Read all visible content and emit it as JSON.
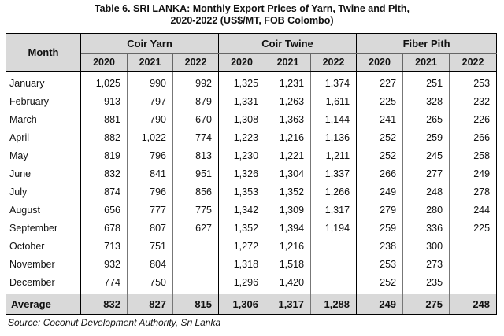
{
  "title_line1": "Table 6. SRI LANKA: Monthly Export Prices of Yarn, Twine and Pith,",
  "title_line2": "2020-2022 (US$/MT, FOB Colombo)",
  "month_header": "Month",
  "groups": [
    "Coir Yarn",
    "Coir Twine",
    "Fiber Pith"
  ],
  "years": [
    "2020",
    "2021",
    "2022"
  ],
  "rows": [
    {
      "month": "January",
      "values": [
        "1,025",
        "990",
        "992",
        "1,325",
        "1,231",
        "1,374",
        "227",
        "251",
        "253"
      ]
    },
    {
      "month": "February",
      "values": [
        "913",
        "797",
        "879",
        "1,331",
        "1,263",
        "1,611",
        "225",
        "328",
        "232"
      ]
    },
    {
      "month": "March",
      "values": [
        "881",
        "790",
        "670",
        "1,308",
        "1,363",
        "1,144",
        "241",
        "265",
        "226"
      ]
    },
    {
      "month": "April",
      "values": [
        "882",
        "1,022",
        "774",
        "1,223",
        "1,216",
        "1,136",
        "252",
        "259",
        "266"
      ]
    },
    {
      "month": "May",
      "values": [
        "819",
        "796",
        "813",
        "1,230",
        "1,221",
        "1,211",
        "252",
        "245",
        "258"
      ]
    },
    {
      "month": "June",
      "values": [
        "832",
        "841",
        "951",
        "1,326",
        "1,304",
        "1,337",
        "266",
        "277",
        "249"
      ]
    },
    {
      "month": "July",
      "values": [
        "874",
        "796",
        "856",
        "1,353",
        "1,352",
        "1,266",
        "249",
        "248",
        "278"
      ]
    },
    {
      "month": "August",
      "values": [
        "656",
        "777",
        "775",
        "1,342",
        "1,309",
        "1,317",
        "279",
        "280",
        "244"
      ]
    },
    {
      "month": "September",
      "values": [
        "678",
        "807",
        "627",
        "1,352",
        "1,394",
        "1,194",
        "259",
        "336",
        "225"
      ]
    },
    {
      "month": "October",
      "values": [
        "713",
        "751",
        "",
        "1,272",
        "1,216",
        "",
        "238",
        "300",
        ""
      ]
    },
    {
      "month": "November",
      "values": [
        "932",
        "804",
        "",
        "1,318",
        "1,518",
        "",
        "253",
        "273",
        ""
      ]
    },
    {
      "month": "December",
      "values": [
        "774",
        "750",
        "",
        "1,296",
        "1,420",
        "",
        "252",
        "235",
        ""
      ]
    }
  ],
  "average": {
    "label": "Average",
    "values": [
      "832",
      "827",
      "815",
      "1,306",
      "1,317",
      "1,288",
      "249",
      "275",
      "248"
    ]
  },
  "source": "Source: Coconut Development Authority, Sri Lanka"
}
